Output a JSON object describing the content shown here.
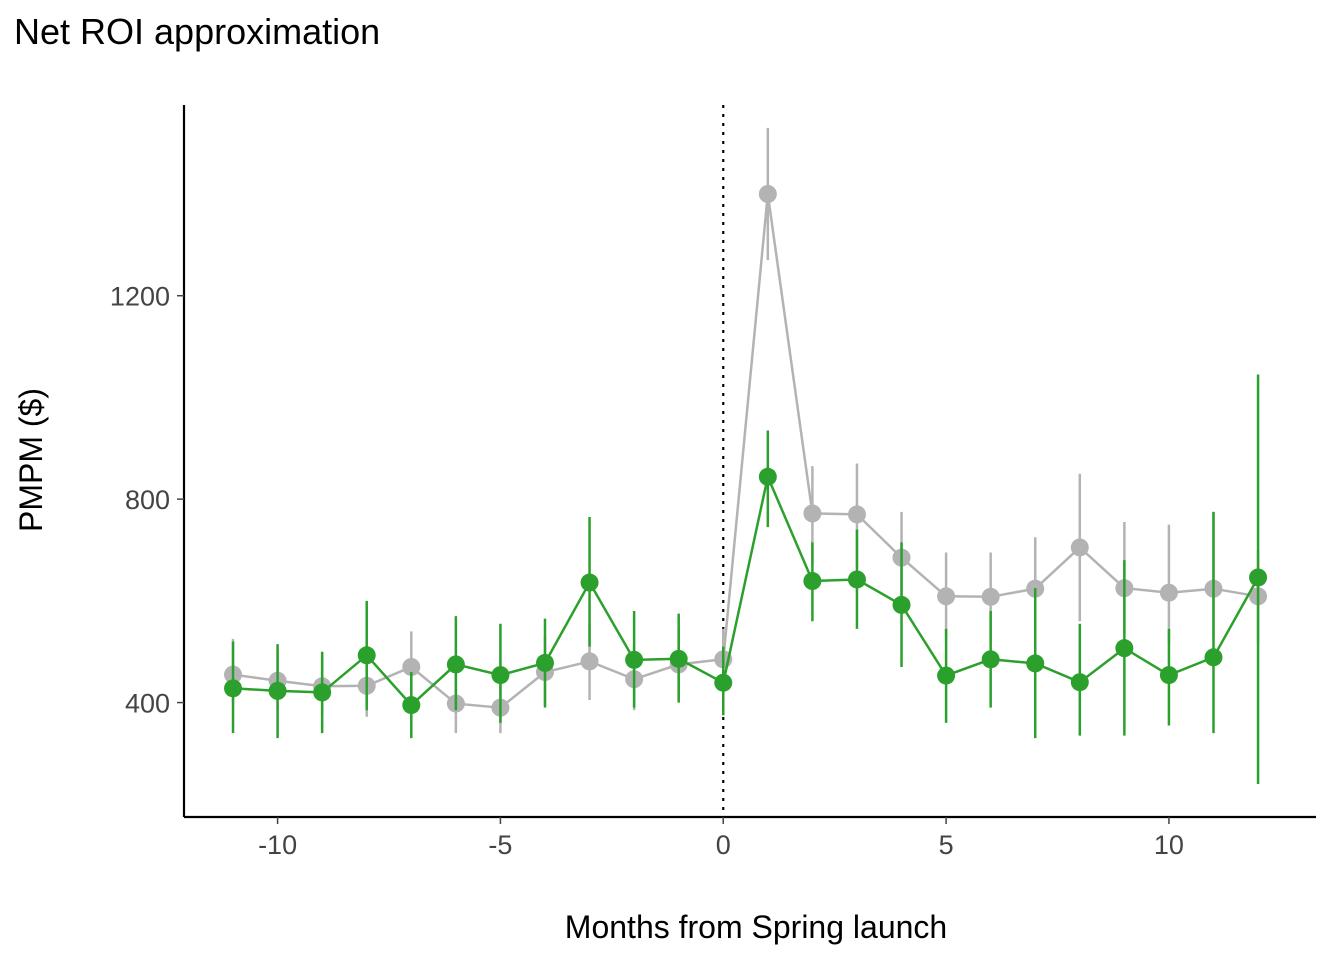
{
  "chart_data": {
    "type": "line",
    "title": "Net ROI approximation",
    "xlabel": "Months from Spring launch",
    "ylabel": "PMPM ($)",
    "xlim": [
      -12.1,
      13.3
    ],
    "ylim": [
      175,
      1575
    ],
    "x_ticks": [
      -10,
      -5,
      0,
      5,
      10
    ],
    "y_ticks": [
      400,
      800,
      1200
    ],
    "x_tick_labels": [
      "-10",
      "-5",
      "0",
      "5",
      "10"
    ],
    "y_tick_labels": [
      "400",
      "800",
      "1200"
    ],
    "reference_line": {
      "x": 0,
      "style": "dotted"
    },
    "grid": false,
    "legend": "none",
    "x": [
      -11,
      -10,
      -9,
      -8,
      -7,
      -6,
      -5,
      -4,
      -3,
      -2,
      -1,
      0,
      1,
      2,
      3,
      4,
      5,
      6,
      7,
      8,
      9,
      10,
      11,
      12
    ],
    "series": [
      {
        "color": "#b3b3b3",
        "values": [
          455,
          443,
          432,
          433,
          470,
          398,
          390,
          460,
          481,
          446,
          475,
          485,
          1400,
          772,
          770,
          685,
          609,
          608,
          624,
          705,
          625,
          616,
          624,
          609
        ],
        "lower": [
          400,
          385,
          375,
          372,
          400,
          340,
          340,
          395,
          405,
          385,
          405,
          422,
          1270,
          670,
          665,
          595,
          525,
          520,
          530,
          560,
          535,
          515,
          525,
          515
        ],
        "upper": [
          525,
          505,
          495,
          505,
          540,
          455,
          445,
          530,
          555,
          510,
          545,
          545,
          1530,
          865,
          870,
          775,
          695,
          695,
          725,
          850,
          755,
          750,
          775,
          700
        ]
      },
      {
        "color": "#2ca02c",
        "values": [
          428,
          423,
          420,
          493,
          395,
          475,
          454,
          478,
          636,
          484,
          486,
          439,
          844,
          639,
          642,
          592,
          453,
          485,
          477,
          440,
          507,
          454,
          489,
          646
        ],
        "lower": [
          340,
          330,
          340,
          385,
          330,
          385,
          360,
          390,
          510,
          390,
          400,
          375,
          745,
          560,
          545,
          470,
          360,
          390,
          330,
          335,
          335,
          355,
          340,
          240
        ],
        "upper": [
          520,
          515,
          500,
          600,
          460,
          570,
          555,
          565,
          765,
          580,
          575,
          510,
          935,
          715,
          740,
          715,
          545,
          580,
          625,
          555,
          680,
          545,
          775,
          1045
        ]
      }
    ]
  }
}
